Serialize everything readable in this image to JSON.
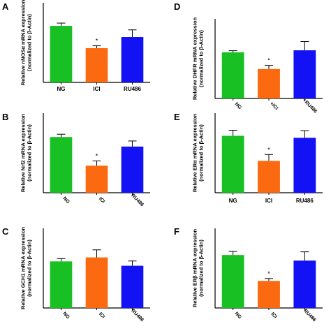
{
  "colors": {
    "NG": "#19c024",
    "ICI": "#fb6a10",
    "RU486": "#1212f5"
  },
  "chart_data": [
    {
      "panel": "A",
      "type": "bar",
      "categories": [
        "NG",
        "ICI",
        "RU486"
      ],
      "values": [
        1.42,
        0.86,
        1.14
      ],
      "errors": [
        0.07,
        0.06,
        0.18
      ],
      "significance": [
        "",
        "*",
        ""
      ],
      "ylabel_line1": "Relative nNOSα mRNA expression",
      "ylabel_line2": "(normalized to β-Actin)",
      "ylim": [
        0,
        2.0
      ],
      "tick_labels": [
        "NG",
        "ICI",
        "RU486"
      ]
    },
    {
      "panel": "B",
      "type": "bar",
      "categories": [
        "NG",
        "ICI",
        "RU486"
      ],
      "values": [
        1.4,
        0.68,
        1.16
      ],
      "errors": [
        0.07,
        0.12,
        0.14
      ],
      "significance": [
        "",
        "*",
        ""
      ],
      "ylabel_line1": "Relative Nrf2 mRNA expression",
      "ylabel_line2": "(normalized to β-Actin)",
      "ylim": [
        0,
        2.0
      ],
      "tick_labels": [
        "NG",
        "ICI",
        "RU486"
      ]
    },
    {
      "panel": "C",
      "type": "bar",
      "categories": [
        "NG",
        "ICI",
        "RU486"
      ],
      "values": [
        1.17,
        1.27,
        1.06
      ],
      "errors": [
        0.07,
        0.19,
        0.12
      ],
      "significance": [
        "",
        "",
        ""
      ],
      "ylabel_line1": "Relative GCH1 mRNA expression",
      "ylabel_line2": "(normalized to β-Actin)",
      "ylim": [
        0,
        2.0
      ],
      "tick_labels": [
        "NG",
        "ICI",
        "RU486"
      ]
    },
    {
      "panel": "D",
      "type": "bar",
      "categories": [
        "NG",
        "ICI",
        "RU486"
      ],
      "values": [
        1.16,
        0.74,
        1.21
      ],
      "errors": [
        0.04,
        0.09,
        0.22
      ],
      "significance": [
        "",
        "*",
        ""
      ],
      "ylabel_line1": "Relative DHFR mRNA expression",
      "ylabel_line2": "(normalized to β-Actin)",
      "ylim": [
        0,
        2.0
      ],
      "tick_labels": [
        "NG",
        "+ICI",
        "+RU486"
      ]
    },
    {
      "panel": "E",
      "type": "bar",
      "categories": [
        "NG",
        "ICI",
        "RU486"
      ],
      "values": [
        1.43,
        0.8,
        1.38
      ],
      "errors": [
        0.14,
        0.16,
        0.18
      ],
      "significance": [
        "",
        "*",
        ""
      ],
      "ylabel_line1": "Relative ERα mRNA expression",
      "ylabel_line2": "(normalized to β-Actin)",
      "ylim": [
        0,
        2.0
      ],
      "tick_labels": [
        "NG",
        "ICI",
        "RU486"
      ]
    },
    {
      "panel": "F",
      "type": "bar",
      "categories": [
        "NG",
        "ICI",
        "RU486"
      ],
      "values": [
        1.33,
        0.68,
        1.19
      ],
      "errors": [
        0.09,
        0.06,
        0.22
      ],
      "significance": [
        "",
        "*",
        ""
      ],
      "ylabel_line1": "Relative ERβ mRNA expression",
      "ylabel_line2": "(normalized to β-Actin)",
      "ylim": [
        0,
        2.0
      ],
      "tick_labels": [
        "NG",
        "ICI",
        "RU486"
      ]
    }
  ]
}
